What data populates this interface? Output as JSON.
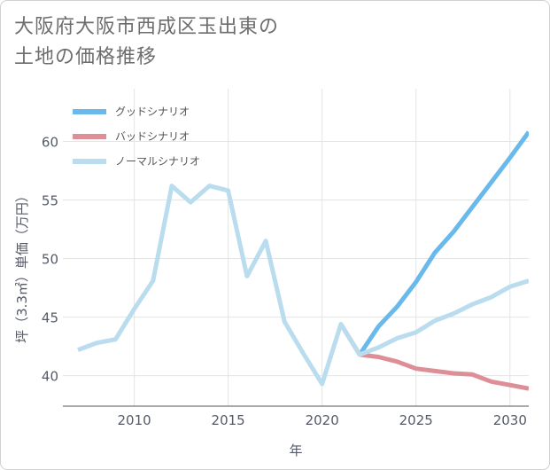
{
  "title_lines": [
    "大阪府大阪市西成区玉出東の",
    "土地の価格推移"
  ],
  "chart_data": {
    "type": "line",
    "title": "大阪府大阪市西成区玉出東の土地の価格推移",
    "xlabel": "年",
    "ylabel": "坪（3.3㎡）単価（万円）",
    "xlim": [
      2006.2,
      2031
    ],
    "ylim": [
      37.4,
      64.5
    ],
    "xticks": [
      2010,
      2015,
      2020,
      2025,
      2030
    ],
    "yticks": [
      40,
      45,
      50,
      55,
      60
    ],
    "grid": true,
    "legend_position": "top-left",
    "series": [
      {
        "name": "グッドシナリオ",
        "color": "#6ab9ec",
        "x": [
          2022,
          2023,
          2024,
          2025,
          2026,
          2027,
          2028,
          2029,
          2030,
          2031
        ],
        "y": [
          41.8,
          44.2,
          45.9,
          48.0,
          50.5,
          52.3,
          54.4,
          56.5,
          58.6,
          60.8
        ]
      },
      {
        "name": "バッドシナリオ",
        "color": "#de8e96",
        "x": [
          2021,
          2022,
          2023,
          2024,
          2025,
          2026,
          2027,
          2028,
          2029,
          2030,
          2031
        ],
        "y": [
          44.4,
          41.8,
          41.6,
          41.2,
          40.6,
          40.4,
          40.2,
          40.1,
          39.5,
          39.2,
          38.9
        ]
      },
      {
        "name": "ノーマルシナリオ",
        "color": "#b9dcee",
        "x": [
          2007,
          2008,
          2009,
          2010,
          2011,
          2012,
          2013,
          2014,
          2015,
          2016,
          2017,
          2018,
          2019,
          2020,
          2021,
          2022,
          2023,
          2024,
          2025,
          2026,
          2027,
          2028,
          2029,
          2030,
          2031
        ],
        "y": [
          42.2,
          42.8,
          43.1,
          45.7,
          48.1,
          56.2,
          54.8,
          56.2,
          55.8,
          48.5,
          51.5,
          44.6,
          41.9,
          39.3,
          44.4,
          41.8,
          42.4,
          43.2,
          43.7,
          44.7,
          45.3,
          46.1,
          46.7,
          47.6,
          48.1
        ]
      }
    ]
  }
}
